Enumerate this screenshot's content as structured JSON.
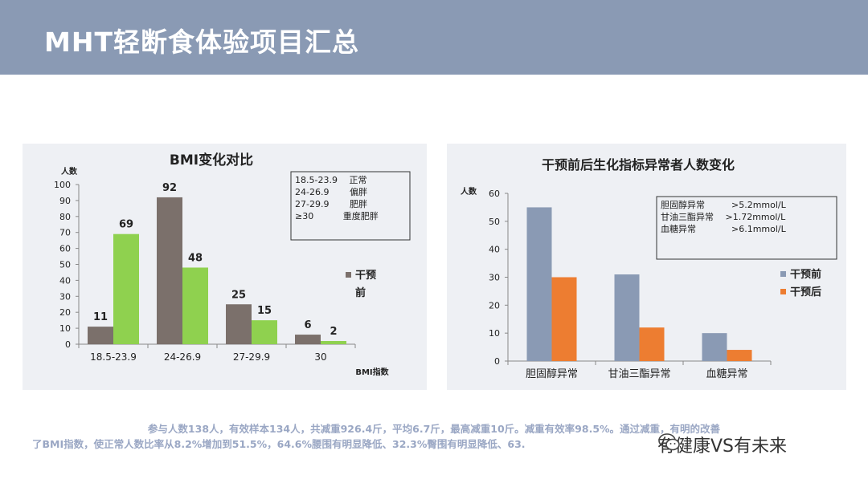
{
  "header": {
    "title": "MHT轻断食体验项目汇总"
  },
  "chart_data": [
    {
      "type": "bar",
      "title": "BMI变化对比",
      "ylabel": "人数",
      "xlabel": "BMI指数",
      "ylim": [
        0,
        100
      ],
      "yticks": [
        0,
        10,
        20,
        30,
        40,
        50,
        60,
        70,
        80,
        90,
        100
      ],
      "categories": [
        "18.5-23.9",
        "24-26.9",
        "27-29.9",
        "30"
      ],
      "series": [
        {
          "name": "干预前",
          "color": "#7b706b",
          "values": [
            11,
            92,
            25,
            6
          ]
        },
        {
          "name": "",
          "color": "#8fd14f",
          "values": [
            69,
            48,
            15,
            2
          ]
        }
      ],
      "legend_position": "right",
      "legend_label_lines": [
        "干预",
        "前"
      ],
      "annotation": [
        "18.5-23.9　 正常",
        "24-26.9　　 偏胖",
        "27-29.9　　 肥胖",
        "≥30　　　 重度肥胖"
      ],
      "grid": false
    },
    {
      "type": "bar",
      "title": "干预前后生化指标异常者人数变化",
      "ylabel": "人数",
      "xlabel": "",
      "ylim": [
        0,
        60
      ],
      "yticks": [
        0,
        10,
        20,
        30,
        40,
        50,
        60
      ],
      "categories": [
        "胆固醇异常",
        "甘油三酯异常",
        "血糖异常"
      ],
      "series": [
        {
          "name": "干预前",
          "color": "#8a9ab4",
          "values": [
            55,
            31,
            10
          ]
        },
        {
          "name": "干预后",
          "color": "#ed7d31",
          "values": [
            30,
            12,
            4
          ]
        }
      ],
      "legend_position": "right",
      "annotation": [
        "胆固醇异常　　　>5.2mmol/L",
        "甘油三酯异常　 >1.72mmol/L",
        "血糖异常　　　　>6.1mmol/L"
      ],
      "grid": false
    }
  ],
  "summary": {
    "line1": "参与人数138人，有效样本134人，共减重926.4斤，平均6.7斤，最高减重10斤。减重有效率98.5%。通过减重，有明的改善",
    "line2": "了BMI指数，使正常人数比率从8.2%增加到51.5%，64.6%腰围有明显降低、32.3%臀围有明显降低、63."
  },
  "watermark": {
    "text": "有健康VS有未来",
    "icon": "wechat-icon"
  }
}
